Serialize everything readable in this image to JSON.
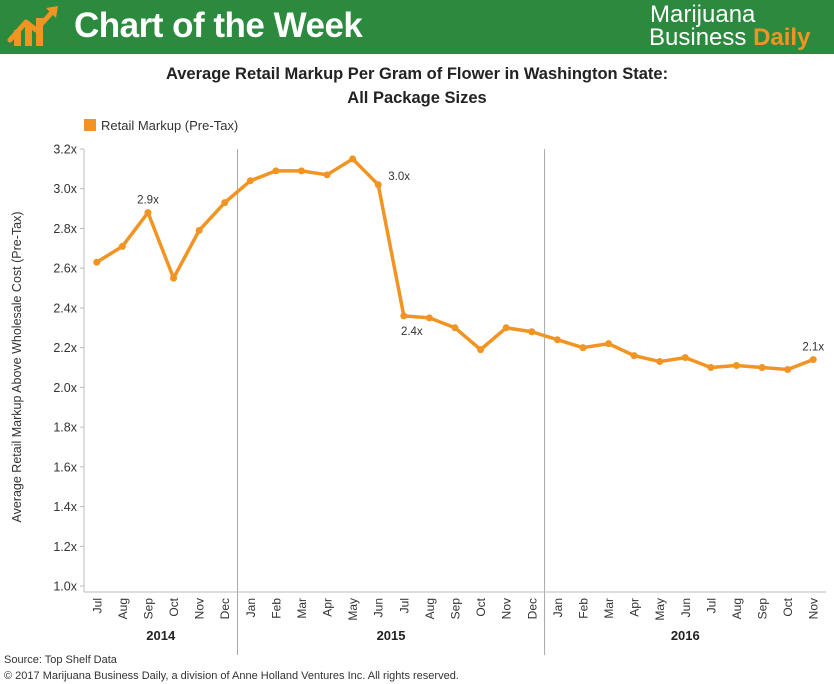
{
  "header": {
    "title": "Chart of the Week",
    "brand_line1": "Marijuana",
    "brand_line2": "Business",
    "brand_line2_accent": "Daily",
    "green": "#2b8a3e",
    "accent": "#f29423",
    "logo_icon": "bar-chart-arrow-icon"
  },
  "footer": {
    "source": "Source: Top Shelf Data",
    "copyright": "© 2017 Marijuana Business Daily, a division of Anne Holland Ventures Inc. All rights reserved."
  },
  "chart_data": {
    "type": "line",
    "title_line1": "Average Retail Markup Per Gram of Flower in Washington State:",
    "title_line2": "All Package Sizes",
    "ylabel": "Average Retail Markup Above Wholesale Cost (Pre-Tax)",
    "xlabel": "",
    "legend": "top-left",
    "series": [
      {
        "name": "Retail Markup (Pre-Tax)",
        "color": "#f29423",
        "values": [
          2.63,
          2.71,
          2.88,
          2.55,
          2.79,
          2.93,
          3.04,
          3.09,
          3.09,
          3.07,
          3.15,
          3.02,
          2.36,
          2.35,
          2.3,
          2.19,
          2.3,
          2.28,
          2.24,
          2.2,
          2.22,
          2.16,
          2.13,
          2.15,
          2.1,
          2.11,
          2.1,
          2.09,
          2.14
        ]
      }
    ],
    "categories": [
      "Jul",
      "Aug",
      "Sep",
      "Oct",
      "Nov",
      "Dec",
      "Jan",
      "Feb",
      "Mar",
      "Apr",
      "May",
      "Jun",
      "Jul",
      "Aug",
      "Sep",
      "Oct",
      "Nov",
      "Dec",
      "Jan",
      "Feb",
      "Mar",
      "Apr",
      "May",
      "Jun",
      "Jul",
      "Aug",
      "Sep",
      "Oct",
      "Nov"
    ],
    "years": [
      {
        "label": "2014",
        "start": 0,
        "end": 5
      },
      {
        "label": "2015",
        "start": 6,
        "end": 17
      },
      {
        "label": "2016",
        "start": 18,
        "end": 28
      }
    ],
    "yticks": [
      "3.2x",
      "3.0x",
      "2.8x",
      "2.6x",
      "2.4x",
      "2.2x",
      "2.0x",
      "1.8x",
      "1.6x",
      "1.4x",
      "1.2x",
      "1.0x"
    ],
    "ytick_values": [
      3.2,
      3.0,
      2.8,
      2.6,
      2.4,
      2.2,
      2.0,
      1.8,
      1.6,
      1.4,
      1.2,
      1.0
    ],
    "ylim": [
      0.97,
      3.2
    ],
    "annotations": [
      {
        "index": 2,
        "text": "2.9x",
        "position": "above"
      },
      {
        "index": 11,
        "text": "3.0x",
        "position": "right"
      },
      {
        "index": 12,
        "text": "2.4x",
        "position": "below"
      },
      {
        "index": 28,
        "text": "2.1x",
        "position": "above"
      }
    ]
  }
}
